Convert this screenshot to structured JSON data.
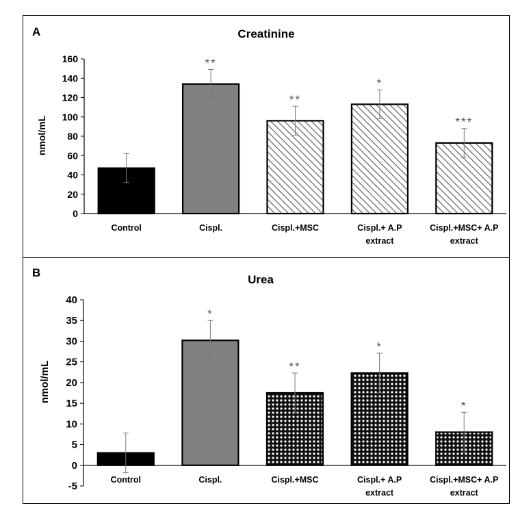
{
  "chart_data": [
    {
      "type": "bar",
      "panel_label": "A",
      "title": "Creatinine",
      "ylabel": "nmol/mL",
      "ylim": [
        0,
        160
      ],
      "yticks": [
        0,
        20,
        40,
        60,
        80,
        100,
        120,
        140,
        160
      ],
      "categories": [
        "Control",
        "Cispl.",
        "Cispl.+MSC",
        "Cispl.+ A.P extract",
        "Cispl.+MSC+ A.P extract"
      ],
      "category_lines": [
        [
          "Control"
        ],
        [
          "Cispl."
        ],
        [
          "Cispl.+MSC"
        ],
        [
          "Cispl.+ A.P",
          "extract"
        ],
        [
          "Cispl.+MSC+ A.P",
          "extract"
        ]
      ],
      "values": [
        47,
        134,
        96,
        113,
        73
      ],
      "errors": [
        15,
        15,
        15,
        15,
        15
      ],
      "significance": [
        "",
        "**",
        "**",
        "*",
        "***"
      ],
      "fills": [
        "solid-black",
        "solid-gray",
        "diagonal-hatch",
        "diagonal-hatch",
        "diagonal-hatch"
      ],
      "grid": false
    },
    {
      "type": "bar",
      "panel_label": "B",
      "title": "Urea",
      "ylabel": "nmol/mL",
      "ylim": [
        -5,
        40
      ],
      "yticks": [
        -5,
        0,
        5,
        10,
        15,
        20,
        25,
        30,
        35,
        40
      ],
      "categories": [
        "Control",
        "Cispl.",
        "Cispl.+MSC",
        "Cispl.+ A.P extract",
        "Cispl.+MSC+ A.P extract"
      ],
      "category_lines": [
        [
          "Control"
        ],
        [
          "Cispl."
        ],
        [
          "Cispl.+MSC"
        ],
        [
          "Cispl.+ A.P",
          "extract"
        ],
        [
          "Cispl.+MSC+ A.P",
          "extract"
        ]
      ],
      "values": [
        3,
        30.2,
        17.5,
        22.3,
        8
      ],
      "errors": [
        4.8,
        4.8,
        4.8,
        4.8,
        4.8
      ],
      "significance": [
        "",
        "*",
        "**",
        "*",
        "*"
      ],
      "fills": [
        "solid-black",
        "solid-gray",
        "dot-pattern",
        "dot-pattern",
        "dot-pattern"
      ],
      "grid": false
    }
  ],
  "colors": {
    "control": "#000000",
    "cispl": "#808080",
    "hatch": "#606060",
    "error_bar": "#7a7a7a",
    "star": "#555555"
  }
}
